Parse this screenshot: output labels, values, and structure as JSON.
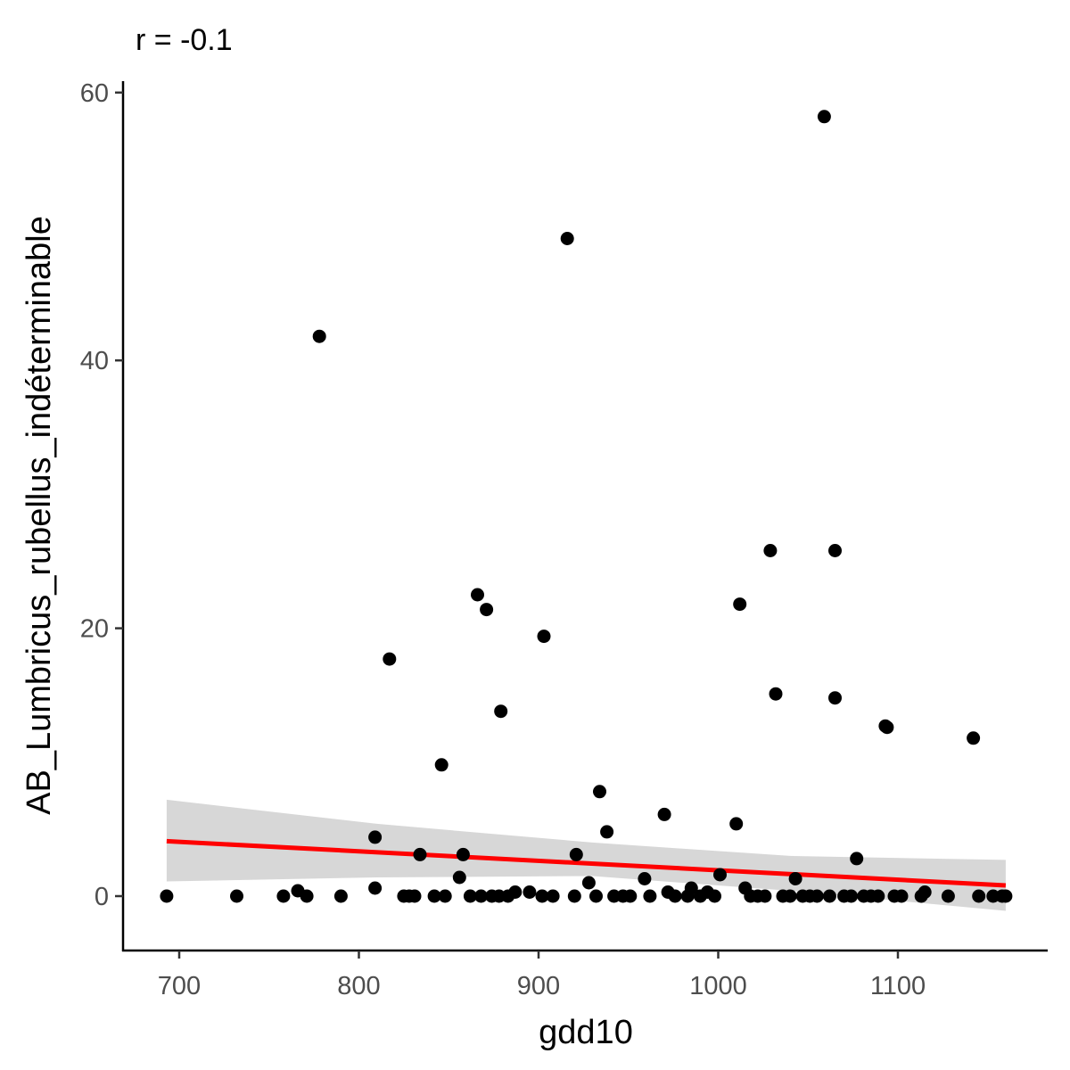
{
  "chart_data": {
    "type": "scatter",
    "title": "r = -0.1",
    "xlabel": "gdd10",
    "ylabel": "AB_Lumbricus_rubellus_indéterminable",
    "xlim": [
      670,
      1170
    ],
    "ylim": [
      -4,
      61
    ],
    "x_ticks": [
      700,
      800,
      900,
      1000,
      1100
    ],
    "x_tick_labels": [
      "700",
      "800",
      "900",
      "1000",
      "1100"
    ],
    "y_ticks": [
      0,
      20,
      40,
      60
    ],
    "y_tick_labels": [
      "0",
      "20",
      "40",
      "60"
    ],
    "grid": false,
    "legend": "none",
    "colors": {
      "points": "#000000",
      "fit_line": "#ff0000",
      "confidence_band": "#d3d3d3"
    },
    "points": [
      [
        693,
        0
      ],
      [
        732,
        0
      ],
      [
        758,
        0
      ],
      [
        766,
        0.4
      ],
      [
        771,
        0
      ],
      [
        778,
        41.8
      ],
      [
        790,
        0
      ],
      [
        809,
        0.6
      ],
      [
        809,
        4.4
      ],
      [
        817,
        17.7
      ],
      [
        825,
        0
      ],
      [
        828,
        0
      ],
      [
        831,
        0
      ],
      [
        834,
        3.1
      ],
      [
        842,
        0
      ],
      [
        846,
        9.8
      ],
      [
        848,
        0
      ],
      [
        856,
        1.4
      ],
      [
        858,
        3.1
      ],
      [
        862,
        0
      ],
      [
        866,
        22.5
      ],
      [
        868,
        0
      ],
      [
        871,
        21.4
      ],
      [
        874,
        0
      ],
      [
        878,
        0
      ],
      [
        879,
        13.8
      ],
      [
        883,
        0
      ],
      [
        887,
        0.3
      ],
      [
        895,
        0.3
      ],
      [
        902,
        0
      ],
      [
        903,
        19.4
      ],
      [
        908,
        0
      ],
      [
        916,
        49.1
      ],
      [
        920,
        0
      ],
      [
        921,
        3.1
      ],
      [
        928,
        1.0
      ],
      [
        932,
        0
      ],
      [
        934,
        7.8
      ],
      [
        938,
        4.8
      ],
      [
        942,
        0
      ],
      [
        947,
        0
      ],
      [
        951,
        0
      ],
      [
        959,
        1.3
      ],
      [
        962,
        0
      ],
      [
        970,
        6.1
      ],
      [
        972,
        0.3
      ],
      [
        976,
        0
      ],
      [
        983,
        0
      ],
      [
        985,
        0.6
      ],
      [
        990,
        0
      ],
      [
        994,
        0.3
      ],
      [
        998,
        0
      ],
      [
        1001,
        1.6
      ],
      [
        1010,
        5.4
      ],
      [
        1012,
        21.8
      ],
      [
        1015,
        0.6
      ],
      [
        1018,
        0
      ],
      [
        1022,
        0
      ],
      [
        1026,
        0
      ],
      [
        1029,
        25.8
      ],
      [
        1032,
        15.1
      ],
      [
        1036,
        0
      ],
      [
        1040,
        0
      ],
      [
        1043,
        1.3
      ],
      [
        1047,
        0
      ],
      [
        1051,
        0
      ],
      [
        1055,
        0
      ],
      [
        1059,
        58.2
      ],
      [
        1062,
        0
      ],
      [
        1065,
        25.8
      ],
      [
        1065,
        14.8
      ],
      [
        1070,
        0
      ],
      [
        1074,
        0
      ],
      [
        1077,
        2.8
      ],
      [
        1081,
        0
      ],
      [
        1085,
        0
      ],
      [
        1089,
        0
      ],
      [
        1093,
        12.7
      ],
      [
        1094,
        12.6
      ],
      [
        1098,
        0
      ],
      [
        1102,
        0
      ],
      [
        1113,
        0
      ],
      [
        1115,
        0.3
      ],
      [
        1128,
        0
      ],
      [
        1142,
        11.8
      ],
      [
        1145,
        0
      ],
      [
        1153,
        0
      ],
      [
        1158,
        0
      ],
      [
        1160,
        0
      ]
    ],
    "fit_line": {
      "x": [
        693,
        1160
      ],
      "y": [
        4.1,
        0.8
      ]
    },
    "confidence_band": {
      "x": [
        693,
        810,
        930,
        1040,
        1160
      ],
      "upper": [
        7.2,
        5.4,
        4.0,
        3.0,
        2.7
      ],
      "lower": [
        1.1,
        1.4,
        1.5,
        0.4,
        -1.1
      ]
    }
  }
}
